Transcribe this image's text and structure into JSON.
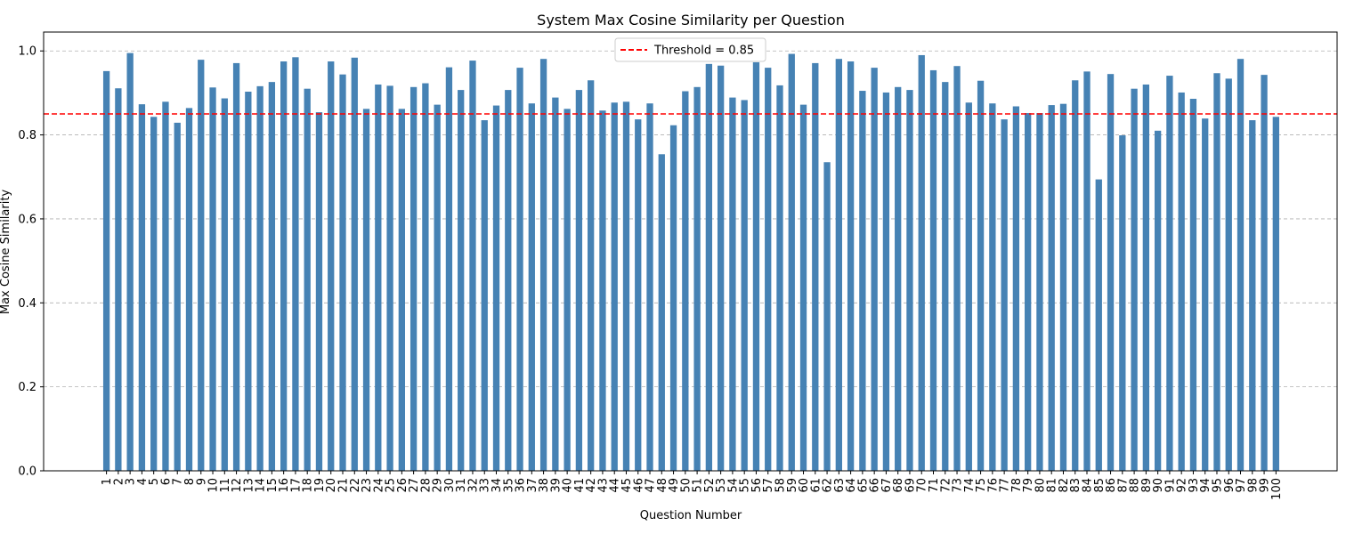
{
  "chart_data": {
    "type": "bar",
    "title": "System Max Cosine Similarity per Question",
    "xlabel": "Question Number",
    "ylabel": "Max Cosine Similarity",
    "ylim": [
      0,
      1.045
    ],
    "yticks": [
      "0.0",
      "0.2",
      "0.4",
      "0.6",
      "0.8",
      "1.0"
    ],
    "ytick_values": [
      0,
      0.2,
      0.4,
      0.6,
      0.8,
      1.0
    ],
    "grid": "y-dashed",
    "legend_position": "top-center",
    "bar_color": "#4682b4",
    "threshold": {
      "label": "Threshold = 0.85",
      "value": 0.85,
      "color": "#ff0000"
    },
    "categories": [
      "1",
      "2",
      "3",
      "4",
      "5",
      "6",
      "7",
      "8",
      "9",
      "10",
      "11",
      "12",
      "13",
      "14",
      "15",
      "16",
      "17",
      "18",
      "19",
      "20",
      "21",
      "22",
      "23",
      "24",
      "25",
      "26",
      "27",
      "28",
      "29",
      "30",
      "31",
      "32",
      "33",
      "34",
      "35",
      "36",
      "37",
      "38",
      "39",
      "40",
      "41",
      "42",
      "43",
      "44",
      "45",
      "46",
      "47",
      "48",
      "49",
      "50",
      "51",
      "52",
      "53",
      "54",
      "55",
      "56",
      "57",
      "58",
      "59",
      "60",
      "61",
      "62",
      "63",
      "64",
      "65",
      "66",
      "67",
      "68",
      "69",
      "70",
      "71",
      "72",
      "73",
      "74",
      "75",
      "76",
      "77",
      "78",
      "79",
      "80",
      "81",
      "82",
      "83",
      "84",
      "85",
      "86",
      "87",
      "88",
      "89",
      "90",
      "91",
      "92",
      "93",
      "94",
      "95",
      "96",
      "97",
      "98",
      "99",
      "100"
    ],
    "values": [
      0.952,
      0.911,
      0.995,
      0.873,
      0.843,
      0.879,
      0.829,
      0.864,
      0.979,
      0.913,
      0.887,
      0.971,
      0.903,
      0.916,
      0.926,
      0.975,
      0.985,
      0.91,
      0.854,
      0.975,
      0.944,
      0.984,
      0.862,
      0.92,
      0.917,
      0.862,
      0.914,
      0.923,
      0.872,
      0.961,
      0.907,
      0.977,
      0.835,
      0.87,
      0.907,
      0.96,
      0.875,
      0.981,
      0.889,
      0.862,
      0.907,
      0.93,
      0.858,
      0.877,
      0.879,
      0.837,
      0.875,
      0.754,
      0.823,
      0.904,
      0.914,
      0.969,
      0.965,
      0.889,
      0.883,
      0.973,
      0.96,
      0.918,
      0.993,
      0.872,
      0.971,
      0.735,
      0.981,
      0.975,
      0.905,
      0.96,
      0.901,
      0.914,
      0.907,
      0.99,
      0.954,
      0.926,
      0.964,
      0.877,
      0.929,
      0.875,
      0.837,
      0.868,
      0.852,
      0.852,
      0.871,
      0.874,
      0.93,
      0.951,
      0.694,
      0.945,
      0.799,
      0.91,
      0.92,
      0.81,
      0.941,
      0.901,
      0.886,
      0.839,
      0.947,
      0.934,
      0.981,
      0.835,
      0.943,
      0.843
    ]
  }
}
